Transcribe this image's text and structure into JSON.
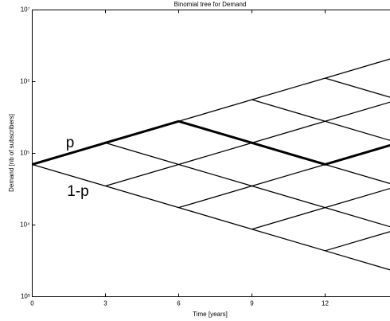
{
  "chart_data": {
    "type": "binomial-tree",
    "title": "Binomial tree for Demand",
    "x_label": "Time [years]",
    "y_label": "Demand [nb of subscribers]",
    "x": [
      0,
      3,
      6,
      9,
      12,
      15
    ],
    "nodes": [
      [
        70000
      ],
      [
        140000,
        35000
      ],
      [
        280000,
        70000,
        17500
      ],
      [
        560000,
        140000,
        35000,
        8750
      ],
      [
        1120000,
        280000,
        70000,
        17500,
        4375
      ],
      [
        2240000,
        560000,
        140000,
        35000,
        8750,
        2187.5
      ]
    ],
    "path": [
      70000,
      140000,
      280000,
      140000,
      70000,
      140000
    ],
    "color": "#000000",
    "annotations": [
      "p",
      "1-p"
    ],
    "xlim": [
      0,
      15
    ],
    "xticks": [
      0,
      3,
      6,
      9,
      12,
      15
    ],
    "ylim": [
      1000,
      10000000
    ],
    "yticks": [
      {
        "value": 1000,
        "label": "10³"
      },
      {
        "value": 10000,
        "label": "10⁴"
      },
      {
        "value": 100000,
        "label": "10⁵"
      },
      {
        "value": 1000000,
        "label": "10⁶"
      },
      {
        "value": 10000000,
        "label": "10⁷"
      }
    ],
    "log_y": true,
    "grid": false
  }
}
